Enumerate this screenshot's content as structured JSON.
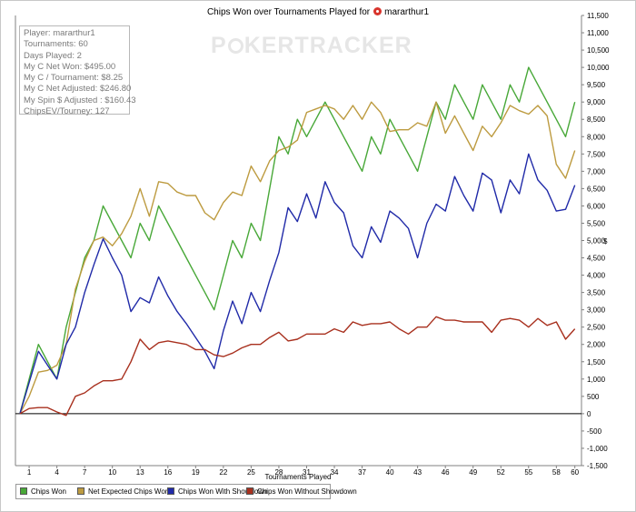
{
  "window": {
    "title_prefix": "Chips Won over Tournaments Played for",
    "player_name": "mararthur1"
  },
  "watermark": {
    "text_left": "P",
    "text_right": "KERTRACKER",
    "icon": "poker-chip-icon"
  },
  "stats_box": {
    "lines": [
      "Player: mararthur1",
      "Tournaments: 60",
      "Days Played: 2",
      "My C Net Won: $495.00",
      "My C / Tournament: $8.25",
      "My C Net Adjusted: $246.80",
      "My Spin $ Adjusted : $160.43",
      "ChipsEV/Tourney: 127"
    ]
  },
  "colors": {
    "chips_won": "#48a838",
    "net_expected": "#bd9b40",
    "showdown": "#202aa8",
    "without_showdown": "#a8301e",
    "zero_line": "#000000",
    "logo": "#d8342c"
  },
  "chart_data": {
    "type": "line",
    "xlabel": "Tournaments Played",
    "ylabel": "$",
    "xlim": [
      0,
      60
    ],
    "ylim": [
      -1500,
      11500
    ],
    "x_ticks": [
      1,
      4,
      7,
      10,
      13,
      16,
      19,
      22,
      25,
      28,
      31,
      34,
      37,
      40,
      43,
      46,
      49,
      52,
      55,
      58,
      60
    ],
    "y_ticks": [
      -1500,
      -1000,
      -500,
      0,
      500,
      1000,
      1500,
      2000,
      2500,
      3000,
      3500,
      4000,
      4500,
      5000,
      5500,
      6000,
      6500,
      7000,
      7500,
      8000,
      8500,
      9000,
      9500,
      10000,
      10500,
      11000,
      11500
    ],
    "y_tick_labels": [
      "-1,500",
      "-1,000",
      "-500",
      "0",
      "500",
      "1,000",
      "1,500",
      "2,000",
      "2,500",
      "3,000",
      "3,500",
      "4,000",
      "4,500",
      "5,000",
      "5,500",
      "6,000",
      "6,500",
      "7,000",
      "7,500",
      "8,000",
      "8,500",
      "9,000",
      "9,500",
      "10,000",
      "10,500",
      "11,000",
      "11,500"
    ],
    "legend_position": "bottom",
    "grid": false,
    "series": [
      {
        "name": "Chips Won",
        "color": "#48a838",
        "x": [
          0,
          1,
          2,
          3,
          4,
          5,
          6,
          7,
          8,
          9,
          10,
          11,
          12,
          13,
          14,
          15,
          16,
          17,
          18,
          19,
          20,
          21,
          22,
          23,
          24,
          25,
          26,
          27,
          28,
          29,
          30,
          31,
          32,
          33,
          34,
          35,
          36,
          37,
          38,
          39,
          40,
          41,
          42,
          43,
          44,
          45,
          46,
          47,
          48,
          49,
          50,
          51,
          52,
          53,
          54,
          55,
          56,
          57,
          58,
          59,
          60
        ],
        "values": [
          0,
          1000,
          2000,
          1500,
          1000,
          2500,
          3500,
          4500,
          5000,
          6000,
          5500,
          5000,
          4500,
          5500,
          5000,
          6000,
          5500,
          5000,
          4500,
          4000,
          3500,
          3000,
          4000,
          5000,
          4500,
          5500,
          5000,
          6500,
          8000,
          7500,
          8500,
          8000,
          8500,
          9000,
          8500,
          8000,
          7500,
          7000,
          8000,
          7500,
          8500,
          8000,
          7500,
          7000,
          8000,
          9000,
          8500,
          9500,
          9000,
          8500,
          9500,
          9000,
          8500,
          9500,
          9000,
          10000,
          9500,
          9000,
          8500,
          8000,
          9000
        ]
      },
      {
        "name": "Net Expected Chips Won",
        "color": "#bd9b40",
        "x": [
          0,
          1,
          2,
          3,
          4,
          5,
          6,
          7,
          8,
          9,
          10,
          11,
          12,
          13,
          14,
          15,
          16,
          17,
          18,
          19,
          20,
          21,
          22,
          23,
          24,
          25,
          26,
          27,
          28,
          29,
          30,
          31,
          32,
          33,
          34,
          35,
          36,
          37,
          38,
          39,
          40,
          41,
          42,
          43,
          44,
          45,
          46,
          47,
          48,
          49,
          50,
          51,
          52,
          53,
          54,
          55,
          56,
          57,
          58,
          59,
          60
        ],
        "values": [
          0,
          500,
          1200,
          1250,
          1400,
          2000,
          3600,
          4400,
          5000,
          5100,
          4850,
          5200,
          5700,
          6500,
          5700,
          6700,
          6650,
          6400,
          6300,
          6300,
          5800,
          5600,
          6100,
          6400,
          6300,
          7150,
          6700,
          7300,
          7600,
          7700,
          7900,
          8700,
          8800,
          8900,
          8800,
          8500,
          8900,
          8500,
          9000,
          8700,
          8150,
          8200,
          8200,
          8400,
          8300,
          9000,
          8100,
          8600,
          8100,
          7600,
          8300,
          8000,
          8400,
          8900,
          8750,
          8650,
          8900,
          8600,
          7200,
          6800,
          7600
        ]
      },
      {
        "name": "Chips Won With Showdown",
        "color": "#202aa8",
        "x": [
          0,
          1,
          2,
          3,
          4,
          5,
          6,
          7,
          8,
          9,
          10,
          11,
          12,
          13,
          14,
          15,
          16,
          17,
          18,
          19,
          20,
          21,
          22,
          23,
          24,
          25,
          26,
          27,
          28,
          29,
          30,
          31,
          32,
          33,
          34,
          35,
          36,
          37,
          38,
          39,
          40,
          41,
          42,
          43,
          44,
          45,
          46,
          47,
          48,
          49,
          50,
          51,
          52,
          53,
          54,
          55,
          56,
          57,
          58,
          59,
          60
        ],
        "values": [
          0,
          900,
          1800,
          1400,
          1000,
          2000,
          2500,
          3500,
          4300,
          5050,
          4500,
          4000,
          2950,
          3350,
          3200,
          3950,
          3400,
          2950,
          2600,
          2200,
          1800,
          1300,
          2400,
          3250,
          2600,
          3500,
          2950,
          3850,
          4650,
          5950,
          5550,
          6350,
          5650,
          6700,
          6100,
          5800,
          4850,
          4500,
          5400,
          4950,
          5850,
          5650,
          5350,
          4500,
          5500,
          6050,
          5850,
          6850,
          6300,
          5850,
          6950,
          6750,
          5800,
          6750,
          6350,
          7500,
          6750,
          6450,
          5850,
          5900,
          6600
        ]
      },
      {
        "name": "Chips Won Without Showdown",
        "color": "#a8301e",
        "x": [
          0,
          1,
          2,
          3,
          4,
          5,
          6,
          7,
          8,
          9,
          10,
          11,
          12,
          13,
          14,
          15,
          16,
          17,
          18,
          19,
          20,
          21,
          22,
          23,
          24,
          25,
          26,
          27,
          28,
          29,
          30,
          31,
          32,
          33,
          34,
          35,
          36,
          37,
          38,
          39,
          40,
          41,
          42,
          43,
          44,
          45,
          46,
          47,
          48,
          49,
          50,
          51,
          52,
          53,
          54,
          55,
          56,
          57,
          58,
          59,
          60
        ],
        "values": [
          0,
          150,
          175,
          175,
          50,
          -50,
          500,
          600,
          800,
          950,
          950,
          1000,
          1500,
          2150,
          1850,
          2050,
          2100,
          2050,
          2000,
          1850,
          1850,
          1700,
          1650,
          1750,
          1900,
          2000,
          2000,
          2200,
          2350,
          2100,
          2150,
          2300,
          2300,
          2300,
          2450,
          2350,
          2650,
          2550,
          2600,
          2600,
          2650,
          2450,
          2300,
          2500,
          2500,
          2800,
          2700,
          2700,
          2650,
          2650,
          2650,
          2350,
          2700,
          2750,
          2700,
          2500,
          2750,
          2550,
          2650,
          2150,
          2450
        ]
      }
    ]
  },
  "legend": {
    "items": [
      {
        "label": "Chips Won",
        "color": "#48a838"
      },
      {
        "label": "Net Expected Chips Won",
        "color": "#bd9b40"
      },
      {
        "label": "Chips Won With Showdown",
        "color": "#202aa8"
      },
      {
        "label": "Chips Won Without Showdown",
        "color": "#a8301e"
      }
    ]
  }
}
